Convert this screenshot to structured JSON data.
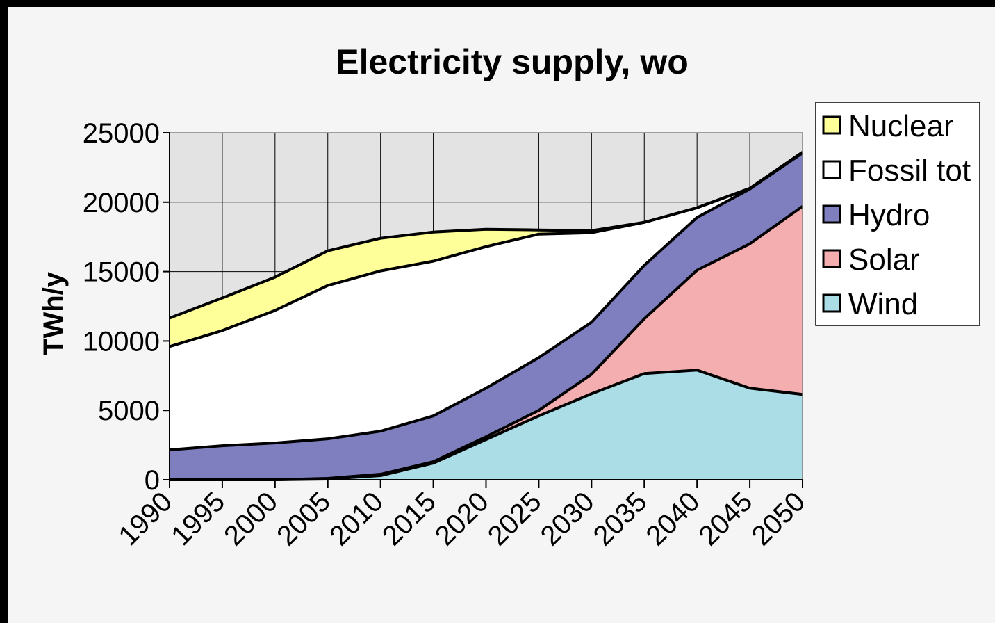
{
  "chart_data": {
    "type": "area",
    "stacked": true,
    "title": "Electricity supply, wo",
    "xlabel": "",
    "ylabel": "TWh/y",
    "x": [
      1990,
      1995,
      2000,
      2005,
      2010,
      2015,
      2020,
      2025,
      2030,
      2035,
      2040,
      2045,
      2050
    ],
    "x_tick_labels": [
      "1990",
      "1995",
      "2000",
      "2005",
      "2010",
      "2015",
      "2020",
      "2025",
      "2030",
      "2035",
      "2040",
      "2045",
      "2050"
    ],
    "ylim": [
      0,
      25000
    ],
    "y_ticks": [
      0,
      5000,
      10000,
      15000,
      20000,
      25000
    ],
    "y_tick_labels": [
      "0",
      "5000",
      "10000",
      "15000",
      "20000",
      "25000"
    ],
    "grid": true,
    "legend_position": "right",
    "series": [
      {
        "name": "Wind",
        "color": "#aadde6",
        "values": [
          0,
          0,
          0,
          50,
          300,
          1200,
          2900,
          4600,
          6200,
          7650,
          7900,
          6600,
          6150
        ]
      },
      {
        "name": "Solar",
        "color": "#f5aeb0",
        "values": [
          0,
          0,
          0,
          50,
          100,
          100,
          200,
          400,
          1400,
          3950,
          7200,
          10400,
          13550
        ]
      },
      {
        "name": "Hydro",
        "color": "#7f7fbf",
        "values": [
          2150,
          2450,
          2650,
          2850,
          3100,
          3300,
          3500,
          3800,
          3750,
          3850,
          3800,
          3950,
          3850
        ]
      },
      {
        "name": "Fossil tot",
        "color": "#ffffff",
        "values": [
          7450,
          8300,
          9550,
          11050,
          11550,
          11150,
          10200,
          8900,
          6450,
          3100,
          700,
          50,
          50
        ]
      },
      {
        "name": "Nuclear",
        "color": "#ffff99",
        "values": [
          2050,
          2350,
          2400,
          2500,
          2350,
          2100,
          1250,
          300,
          150,
          0,
          0,
          0,
          0
        ]
      }
    ],
    "legend_order": [
      "Nuclear",
      "Fossil tot",
      "Hydro",
      "Solar",
      "Wind"
    ],
    "plot_background": "#e3e3e3"
  }
}
